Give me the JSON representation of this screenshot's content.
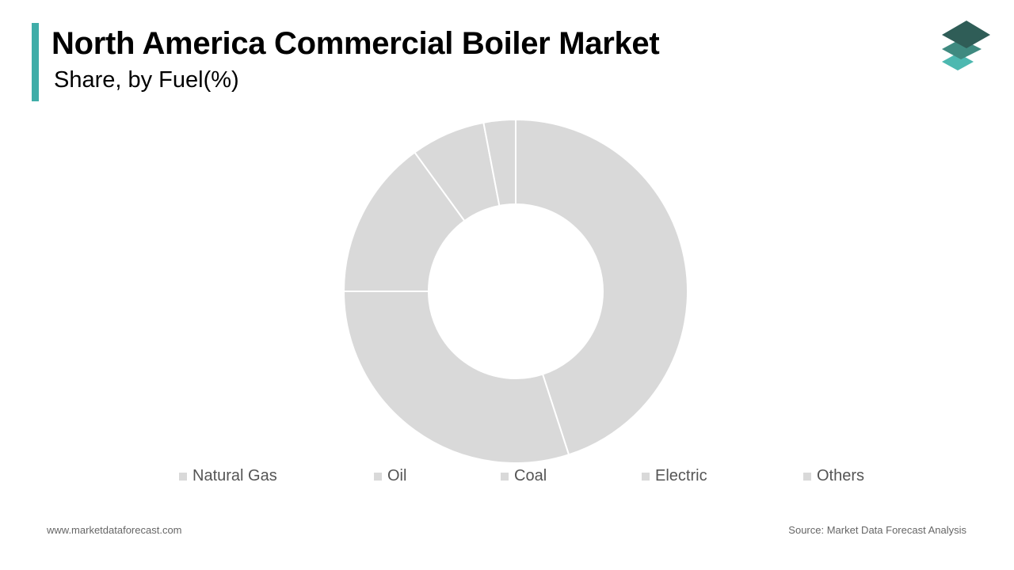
{
  "header": {
    "title": "North America Commercial Boiler Market",
    "subtitle": "Share, by Fuel(%)"
  },
  "footer": {
    "website": "www.marketdataforecast.com",
    "source": "Source: Market Data Forecast Analysis"
  },
  "colors": {
    "accent": "#3fada8",
    "slice": "#d9d9d9",
    "slice_border": "#ffffff",
    "legend_swatch": "#d9d9d9",
    "logo_top": "#2f5d57",
    "logo_mid": "#3f8a80",
    "logo_bottom": "#4db8b0"
  },
  "logo": {
    "icon": "stacked-layers-icon"
  },
  "chart_data": {
    "type": "pie",
    "donut": true,
    "categories": [
      "Natural Gas",
      "Oil",
      "Coal",
      "Electric",
      "Others"
    ],
    "values": [
      45,
      30,
      15,
      7,
      3
    ],
    "unit": "%",
    "legend_position": "bottom"
  }
}
